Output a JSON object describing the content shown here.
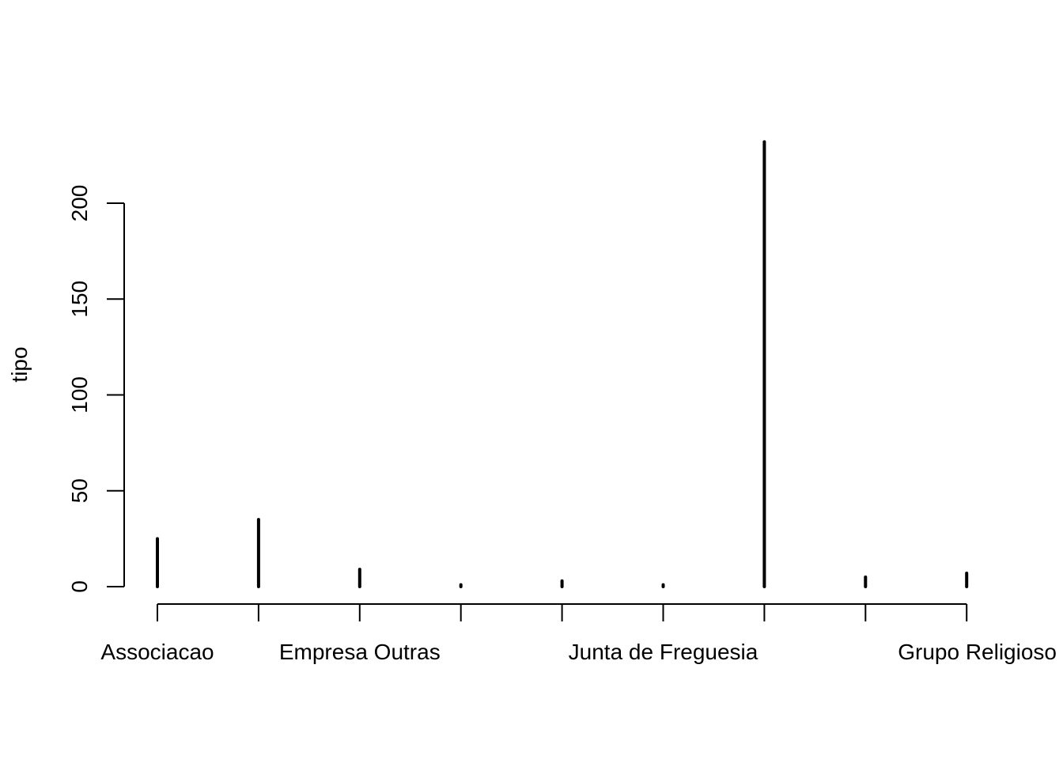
{
  "chart_data": {
    "type": "bar",
    "style": "histogram-lines",
    "title": "",
    "xlabel": "",
    "ylabel": "tipo",
    "ylim": [
      0,
      232
    ],
    "yticks": [
      0,
      50,
      100,
      150,
      200
    ],
    "grid": false,
    "categories": [
      "Associacao",
      "",
      "Empresa Outras",
      "",
      "",
      "Junta de Freguesia",
      "",
      "",
      "Grupo Religioso"
    ],
    "values": [
      25,
      35,
      9,
      1,
      3,
      1,
      232,
      5,
      7
    ],
    "colors": {
      "line": "#000000",
      "background": "#ffffff"
    }
  }
}
